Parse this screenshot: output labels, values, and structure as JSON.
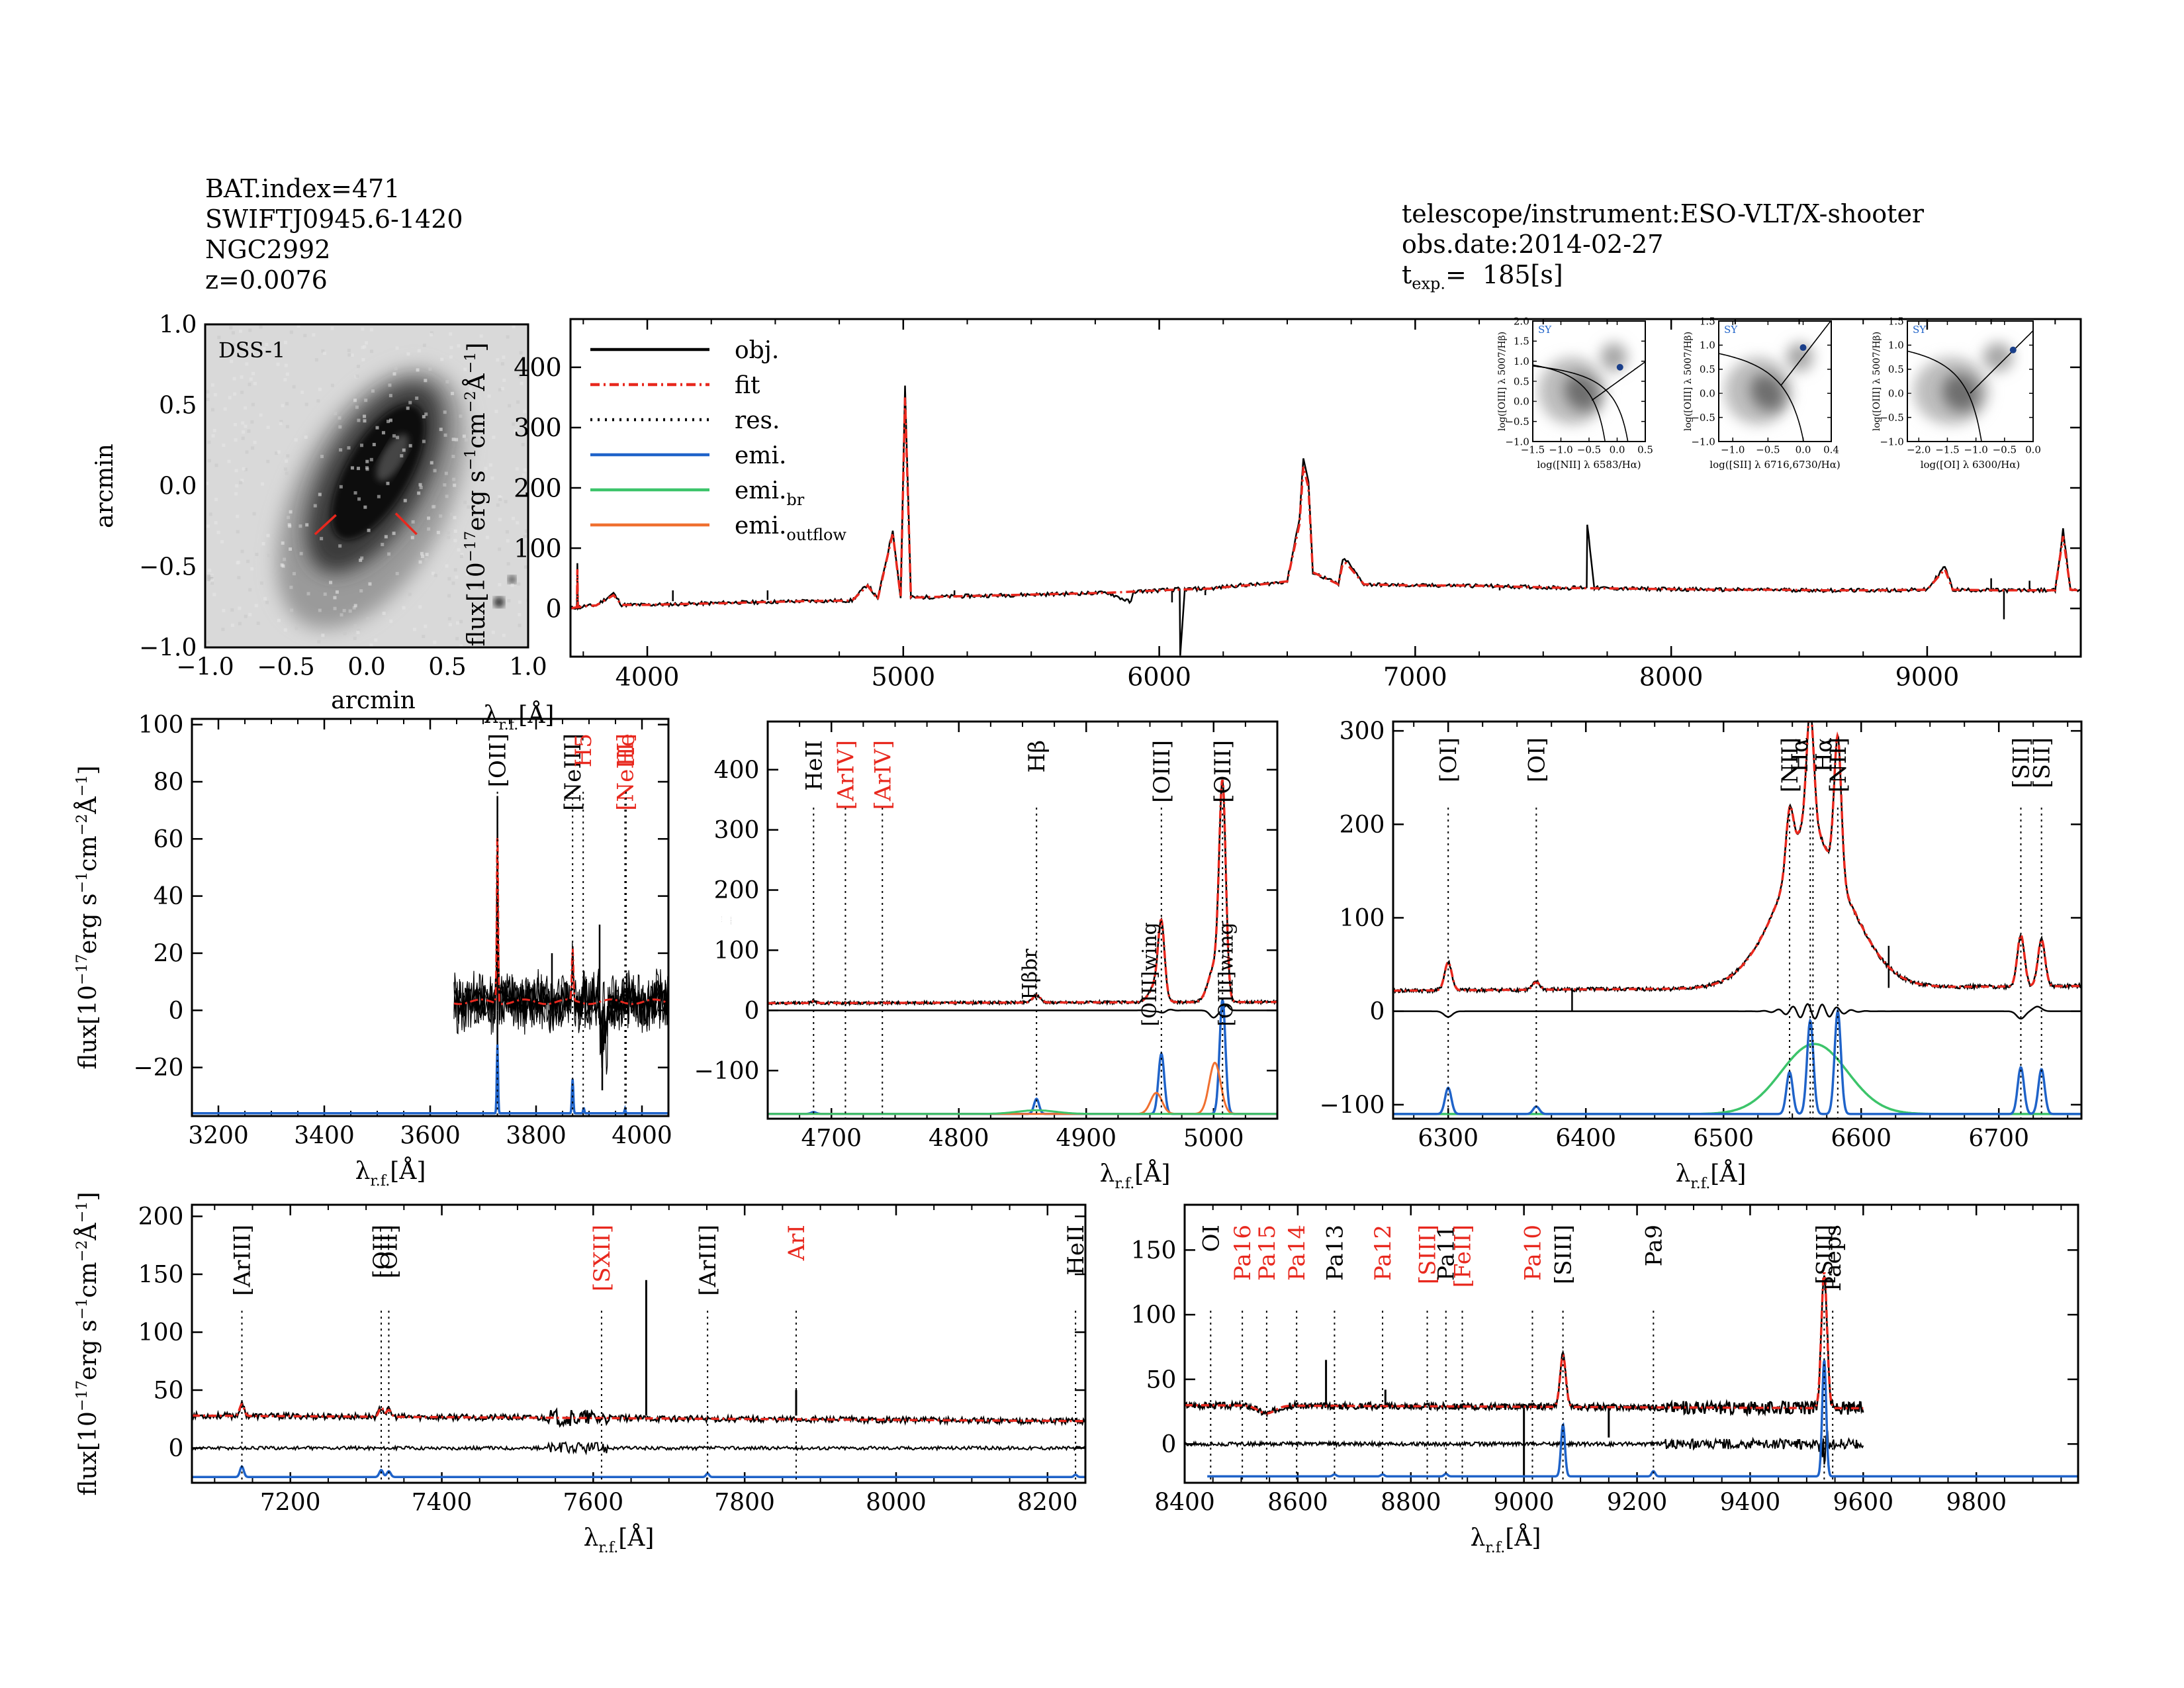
{
  "header": {
    "bat_index": "BAT.index=471",
    "swift_name": "SWIFTJ0945.6-1420",
    "galaxy": "NGC2992",
    "redshift": "z=0.0076",
    "telescope": "telescope/instrument:ESO-VLT/X-shooter",
    "obs_date": "obs.date:2014-02-27",
    "texp_label": "t",
    "texp_sub": "exp.",
    "texp_value": "=  185[s]"
  },
  "colors": {
    "obj": "#000000",
    "fit": "#e8281e",
    "emi": "#1f63c9",
    "emi_br": "#3cc46a",
    "emi_outflow": "#f07030",
    "label_red": "#e8281e"
  },
  "chart_data": [
    {
      "id": "image",
      "type": "image",
      "title": "DSS-1",
      "xlabel": "arcmin",
      "ylabel": "arcmin",
      "xlim": [
        -1.0,
        1.0
      ],
      "ylim": [
        -1.0,
        1.0
      ],
      "xticks": [
        "-1.0",
        "-0.5",
        "0.0",
        "0.5",
        "1.0"
      ],
      "yticks": [
        "-1.0",
        "-0.5",
        "0.0",
        "0.5",
        "1.0"
      ]
    },
    {
      "id": "full",
      "type": "line",
      "xlabel": "λr.f.[Å]",
      "ylabel": "flux[10^-17 erg s^-1 cm^-2 Å^-1]",
      "xlim": [
        3700,
        9600
      ],
      "ylim": [
        -80,
        480
      ],
      "xticks": [
        "4000",
        "5000",
        "6000",
        "7000",
        "8000",
        "9000"
      ],
      "yticks": [
        "0",
        "100",
        "200",
        "300",
        "400"
      ],
      "legend": [
        "obj.",
        "fit",
        "res.",
        "emi.",
        "emi.br",
        "emi.outflow"
      ],
      "series": [
        {
          "name": "obj.",
          "x": [
            3700,
            3725,
            3727,
            3729,
            3760,
            3800,
            3868,
            3900,
            4000,
            4200,
            4340,
            4400,
            4600,
            4800,
            4861,
            4900,
            4959,
            4990,
            5007,
            5030,
            5200,
            5400,
            5600,
            5800,
            5890,
            5900,
            6000,
            6080,
            6082,
            6100,
            6200,
            6300,
            6400,
            6500,
            6548,
            6563,
            6583,
            6600,
            6700,
            6717,
            6731,
            6800,
            7000,
            7200,
            7400,
            7600,
            7670,
            7672,
            7700,
            7800,
            8000,
            8200,
            8400,
            8600,
            8800,
            9000,
            9069,
            9100,
            9300,
            9500,
            9531,
            9560,
            9600
          ],
          "y": [
            0,
            2,
            75,
            2,
            4,
            5,
            25,
            6,
            6,
            8,
            10,
            10,
            12,
            13,
            40,
            15,
            130,
            18,
            370,
            18,
            20,
            22,
            24,
            26,
            10,
            28,
            30,
            32,
            -80,
            32,
            33,
            38,
            40,
            45,
            150,
            250,
            210,
            60,
            40,
            80,
            80,
            40,
            38,
            38,
            36,
            34,
            35,
            140,
            34,
            33,
            32,
            31,
            31,
            30,
            30,
            31,
            70,
            31,
            30,
            30,
            130,
            31,
            30
          ]
        },
        {
          "name": "fit",
          "x": [
            3700,
            3725,
            3727,
            3729,
            3760,
            3800,
            3868,
            3900,
            4000,
            4200,
            4340,
            4400,
            4600,
            4800,
            4861,
            4900,
            4959,
            4990,
            5007,
            5030,
            5200,
            5400,
            5600,
            5800,
            6000,
            6200,
            6300,
            6400,
            6500,
            6548,
            6563,
            6583,
            6600,
            6700,
            6717,
            6731,
            6800,
            7000,
            7200,
            7400,
            7600,
            7800,
            8000,
            8200,
            8400,
            8600,
            8800,
            9000,
            9069,
            9100,
            9300,
            9500,
            9531,
            9560,
            9600
          ],
          "y": [
            0,
            2,
            65,
            2,
            4,
            5,
            22,
            6,
            6,
            8,
            9,
            10,
            12,
            13,
            38,
            15,
            125,
            18,
            350,
            18,
            20,
            22,
            24,
            26,
            30,
            33,
            37,
            40,
            45,
            140,
            235,
            200,
            60,
            40,
            75,
            75,
            40,
            38,
            38,
            36,
            34,
            33,
            32,
            31,
            31,
            30,
            30,
            31,
            65,
            31,
            30,
            30,
            120,
            31,
            30
          ]
        }
      ]
    },
    {
      "id": "oii",
      "type": "line",
      "xlabel": "λr.f.[Å]",
      "ylabel": "flux[10^-17 erg s^-1 cm^-2 Å^-1]",
      "xlim": [
        3150,
        4050
      ],
      "ylim": [
        -37,
        102
      ],
      "xticks": [
        "3200",
        "3400",
        "3600",
        "3800",
        "4000"
      ],
      "yticks": [
        "-20",
        "0",
        "20",
        "40",
        "60",
        "80",
        "100"
      ],
      "lines": [
        {
          "label": "[OII]",
          "x": 3727,
          "color": "black"
        },
        {
          "label": "[NeIII]",
          "x": 3869,
          "color": "black"
        },
        {
          "label": "H5",
          "x": 3889,
          "color": "red"
        },
        {
          "label": "[NeIII]",
          "x": 3968,
          "color": "red"
        },
        {
          "label": "He",
          "x": 3970,
          "color": "red"
        }
      ]
    },
    {
      "id": "hb",
      "type": "line",
      "xlabel": "λr.f.[Å]",
      "ylabel": "",
      "xlim": [
        4650,
        5050
      ],
      "ylim": [
        -180,
        480
      ],
      "xticks": [
        "4700",
        "4800",
        "4900",
        "5000"
      ],
      "yticks": [
        "-100",
        "0",
        "100",
        "200",
        "300",
        "400"
      ],
      "lines": [
        {
          "label": "HeII",
          "x": 4686,
          "color": "black"
        },
        {
          "label": "[ArIV]",
          "x": 4711,
          "color": "red"
        },
        {
          "label": "[ArIV]",
          "x": 4740,
          "color": "red"
        },
        {
          "label": "Hβ",
          "x": 4861,
          "color": "black"
        },
        {
          "label": "[OIII]",
          "x": 4959,
          "color": "black"
        },
        {
          "label": "[OIII]",
          "x": 5007,
          "color": "black"
        }
      ],
      "annotations": [
        "Hβbr",
        "[OIII]wing",
        "[OIII]wing"
      ]
    },
    {
      "id": "ha",
      "type": "line",
      "xlabel": "λr.f.[Å]",
      "ylabel": "",
      "xlim": [
        6260,
        6760
      ],
      "ylim": [
        -115,
        310
      ],
      "xticks": [
        "6300",
        "6400",
        "6500",
        "6600",
        "6700"
      ],
      "yticks": [
        "-100",
        "0",
        "100",
        "200",
        "300"
      ],
      "lines": [
        {
          "label": "[OI]",
          "x": 6300,
          "color": "black"
        },
        {
          "label": "[OI]",
          "x": 6364,
          "color": "black"
        },
        {
          "label": "[NII]",
          "x": 6548,
          "color": "black"
        },
        {
          "label": "Hα",
          "x": 6563,
          "color": "black"
        },
        {
          "label": "Hα",
          "x": 6565,
          "color": "black"
        },
        {
          "label": "[NII]",
          "x": 6583,
          "color": "black"
        },
        {
          "label": "[SII]",
          "x": 6716,
          "color": "black"
        },
        {
          "label": "[SII]",
          "x": 6731,
          "color": "black"
        }
      ]
    },
    {
      "id": "red1",
      "type": "line",
      "xlabel": "λr.f.[Å]",
      "ylabel": "flux[10^-17 erg s^-1 cm^-2 Å^-1]",
      "xlim": [
        7070,
        8250
      ],
      "ylim": [
        -30,
        210
      ],
      "xticks": [
        "7200",
        "7400",
        "7600",
        "7800",
        "8000",
        "8200"
      ],
      "yticks": [
        "0",
        "50",
        "100",
        "150",
        "200"
      ],
      "lines": [
        {
          "label": "[ArIII]",
          "x": 7136,
          "color": "black"
        },
        {
          "label": "[OII]",
          "x": 7320,
          "color": "black"
        },
        {
          "label": "[OII]",
          "x": 7330,
          "color": "black"
        },
        {
          "label": "[SXII]",
          "x": 7611,
          "color": "red"
        },
        {
          "label": "[ArIII]",
          "x": 7751,
          "color": "black"
        },
        {
          "label": "ArI",
          "x": 7868,
          "color": "red"
        },
        {
          "label": "HeII",
          "x": 8237,
          "color": "black"
        }
      ]
    },
    {
      "id": "red2",
      "type": "line",
      "xlabel": "λr.f.[Å]",
      "ylabel": "",
      "xlim": [
        8400,
        9980
      ],
      "ylim": [
        -30,
        185
      ],
      "xticks": [
        "8400",
        "8600",
        "8800",
        "9000",
        "9200",
        "9400",
        "9600",
        "9800"
      ],
      "yticks": [
        "0",
        "50",
        "100",
        "150"
      ],
      "lines": [
        {
          "label": "OI",
          "x": 8446,
          "color": "black"
        },
        {
          "label": "Pa16",
          "x": 8502,
          "color": "red"
        },
        {
          "label": "Pa15",
          "x": 8545,
          "color": "red"
        },
        {
          "label": "Pa14",
          "x": 8598,
          "color": "red"
        },
        {
          "label": "Pa13",
          "x": 8665,
          "color": "black"
        },
        {
          "label": "Pa12",
          "x": 8750,
          "color": "red"
        },
        {
          "label": "[SIII]",
          "x": 8829,
          "color": "red"
        },
        {
          "label": "Pa11",
          "x": 8862,
          "color": "black"
        },
        {
          "label": "[FeII]",
          "x": 8891,
          "color": "red"
        },
        {
          "label": "Pa10",
          "x": 9015,
          "color": "red"
        },
        {
          "label": "[SIII]",
          "x": 9069,
          "color": "black"
        },
        {
          "label": "Pa9",
          "x": 9229,
          "color": "black"
        },
        {
          "label": "[SIII]",
          "x": 9531,
          "color": "black"
        },
        {
          "label": "Paeps",
          "x": 9546,
          "color": "black"
        }
      ]
    },
    {
      "id": "bpt1",
      "type": "scatter",
      "xlabel": "log([NII] λ 6583/Hα)",
      "ylabel": "log([OIII] λ 5007/Hβ)",
      "xlim": [
        -1.5,
        0.5
      ],
      "ylim": [
        -1.0,
        2.0
      ],
      "xticks": [
        "-1.5",
        "-1.0",
        "-0.5",
        "0.0",
        "0.5"
      ],
      "yticks": [
        "-1.0",
        "-0.5",
        "0.0",
        "0.5",
        "1.0",
        "1.5",
        "2.0"
      ],
      "tag": "SY",
      "point": [
        0.05,
        0.85
      ]
    },
    {
      "id": "bpt2",
      "type": "scatter",
      "xlabel": "log([SII] λ 6716,6730/Hα)",
      "ylabel": "log([OIII] λ 5007/Hβ)",
      "xlim": [
        -1.2,
        0.4
      ],
      "ylim": [
        -1.0,
        1.5
      ],
      "xticks": [
        "-1.0",
        "-0.5",
        "0.0",
        "0.4"
      ],
      "yticks": [
        "-1.0",
        "-0.5",
        "0.0",
        "0.5",
        "1.0",
        "1.5"
      ],
      "tag": "SY",
      "point": [
        0.0,
        0.95
      ]
    },
    {
      "id": "bpt3",
      "type": "scatter",
      "xlabel": "log([OI] λ 6300/Hα)",
      "ylabel": "log([OIII] λ 5007/Hβ)",
      "xlim": [
        -2.2,
        0.0
      ],
      "ylim": [
        -1.0,
        1.5
      ],
      "xticks": [
        "-2.0",
        "-1.5",
        "-1.0",
        "-0.5",
        "0.0"
      ],
      "yticks": [
        "-1.0",
        "-0.5",
        "0.0",
        "0.5",
        "1.0",
        "1.5"
      ],
      "tag": "SY",
      "point": [
        -0.35,
        0.9
      ]
    }
  ]
}
